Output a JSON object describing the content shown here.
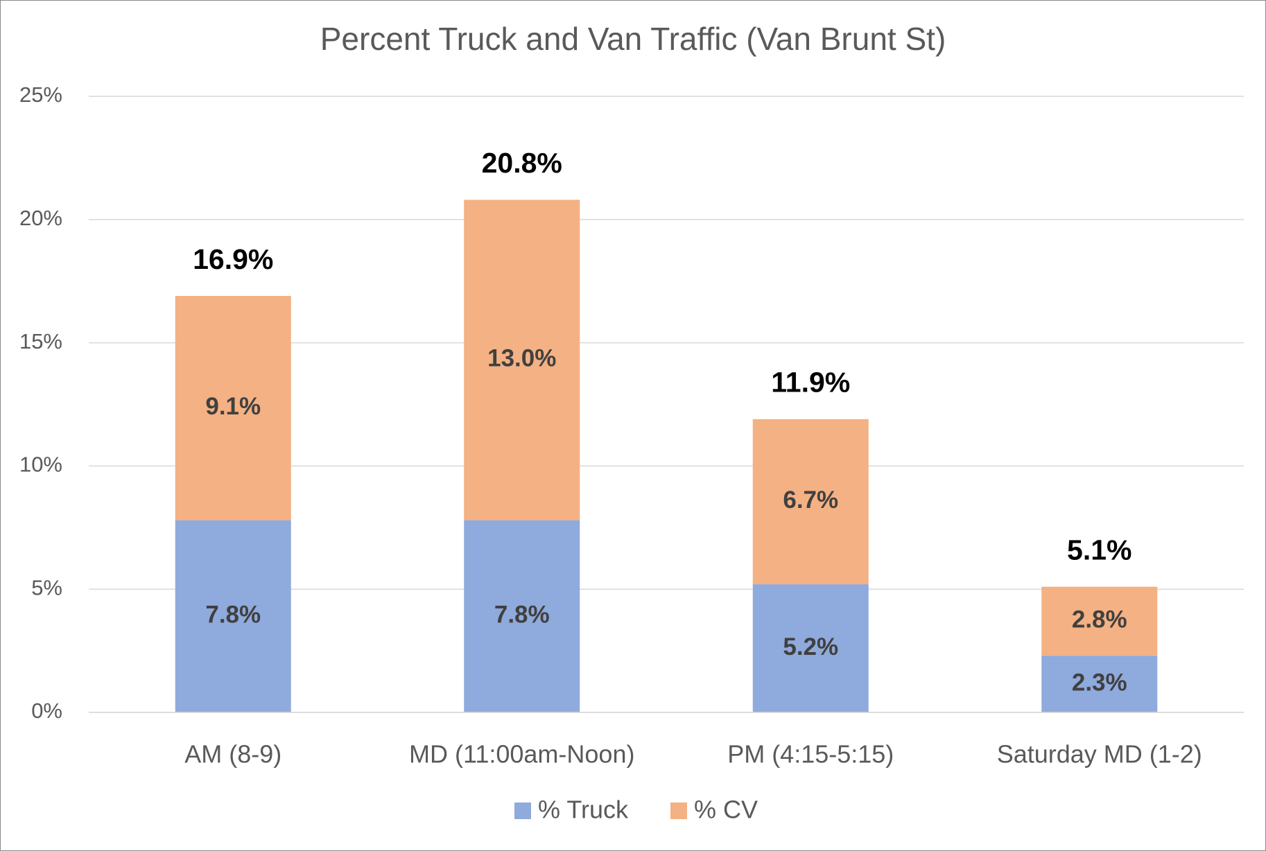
{
  "chart_data": {
    "type": "stacked_bar",
    "title": "Percent Truck and Van Traffic (Van Brunt St)",
    "categories": [
      "AM (8-9)",
      "MD (11:00am-Noon)",
      "PM (4:15-5:15)",
      "Saturday MD (1-2)"
    ],
    "series": [
      {
        "name": "% Truck",
        "color": "#8faadc",
        "values": [
          7.8,
          7.8,
          5.2,
          2.3
        ],
        "value_labels": [
          "7.8%",
          "7.8%",
          "5.2%",
          "2.3%"
        ]
      },
      {
        "name": "% CV",
        "color": "#f4b183",
        "values": [
          9.1,
          13.0,
          6.7,
          2.8
        ],
        "value_labels": [
          "9.1%",
          "13.0%",
          "6.7%",
          "2.8%"
        ]
      }
    ],
    "totals": [
      16.9,
      20.8,
      11.9,
      5.1
    ],
    "total_labels": [
      "16.9%",
      "20.8%",
      "11.9%",
      "5.1%"
    ],
    "ylim": [
      0,
      25
    ],
    "yticks": [
      {
        "value": 0,
        "label": "0%"
      },
      {
        "value": 5,
        "label": "5%"
      },
      {
        "value": 10,
        "label": "10%"
      },
      {
        "value": 15,
        "label": "15%"
      },
      {
        "value": 20,
        "label": "20%"
      },
      {
        "value": 25,
        "label": "25%"
      }
    ],
    "grid": true,
    "legend": "bottom"
  }
}
